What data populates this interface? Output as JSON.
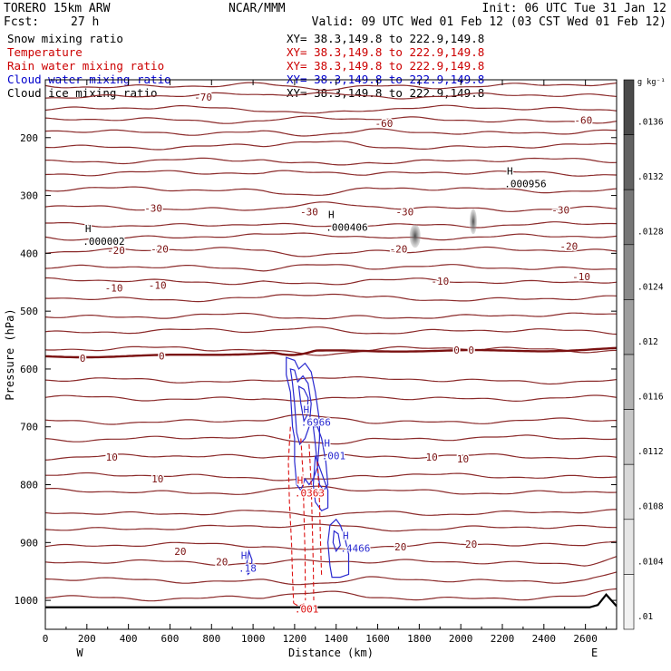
{
  "header": {
    "model": "TORERO  15km ARW",
    "center": "NCAR/MMM",
    "init": "Init: 06 UTC Tue 31 Jan 12",
    "fcst_label": "Fcst:",
    "fcst_value": "27 h",
    "valid": "Valid: 09 UTC Wed 01 Feb 12 (03 CST Wed 01 Feb 12)"
  },
  "legend": [
    {
      "name": "Snow mixing ratio",
      "color": "#000000",
      "xy": "XY=  38.3,149.8 to 222.9,149.8"
    },
    {
      "name": "Temperature",
      "color": "#cc0000",
      "xy": "XY=  38.3,149.8 to 222.9,149.8"
    },
    {
      "name": "Rain water mixing ratio",
      "color": "#cc0000",
      "xy": "XY=  38.3,149.8 to 222.9,149.8"
    },
    {
      "name": "Cloud water mixing ratio",
      "color": "#0000cc",
      "xy": "XY=  38.3,149.8 to 222.9,149.8"
    },
    {
      "name": "Cloud ice mixing ratio",
      "color": "#000000",
      "xy": "XY=  38.3,149.8 to 222.9,149.8"
    }
  ],
  "colorbar": {
    "unit": "g kg⁻¹",
    "ticks": [
      ".0136",
      ".0132",
      ".0128",
      ".0124",
      ".012",
      ".0116",
      ".0112",
      ".0108",
      ".0104",
      ".01"
    ],
    "shades": [
      "#4a4a4a",
      "#626262",
      "#767676",
      "#8a8a8a",
      "#9e9e9e",
      "#b2b2b2",
      "#c6c6c6",
      "#d8d8d8",
      "#e6e6e6",
      "#f2f2f2"
    ]
  },
  "colors": {
    "temperature": "#8b2a2a",
    "zero_isotherm": "#7a1010",
    "rain": "#dd1111",
    "cloud_water": "#2a2ad0",
    "terrain": "#000000"
  },
  "chart_data": {
    "type": "cross-section",
    "xlabel": "Distance (km)",
    "ylabel": "Pressure (hPa)",
    "xlim": [
      0,
      2750
    ],
    "ylim": [
      1050,
      100
    ],
    "xticks": [
      0,
      200,
      400,
      600,
      800,
      1000,
      1200,
      1400,
      1600,
      1800,
      2000,
      2200,
      2400,
      2600
    ],
    "yticks": [
      200,
      300,
      400,
      500,
      600,
      700,
      800,
      900,
      1000
    ],
    "x_end_labels": {
      "left": "W",
      "right": "E"
    },
    "temperature_isotherms": [
      {
        "value": -70,
        "label": "-70",
        "label_x": 760,
        "label_p": 130
      },
      {
        "value": -60,
        "label": "-60",
        "label_x": 1630,
        "label_p": 175
      },
      {
        "value": -60,
        "label": "-60",
        "label_x": 2590,
        "label_p": 170
      },
      {
        "value": -30,
        "label": "-30",
        "label_x": 520,
        "label_p": 322
      },
      {
        "value": -30,
        "label": "-30",
        "label_x": 1270,
        "label_p": 328
      },
      {
        "value": -30,
        "label": "-30",
        "label_x": 1730,
        "label_p": 328
      },
      {
        "value": -30,
        "label": "-30",
        "label_x": 2480,
        "label_p": 325
      },
      {
        "value": -20,
        "label": "-20",
        "label_x": 340,
        "label_p": 395
      },
      {
        "value": -20,
        "label": "-20",
        "label_x": 550,
        "label_p": 392
      },
      {
        "value": -20,
        "label": "-20",
        "label_x": 1700,
        "label_p": 392
      },
      {
        "value": -20,
        "label": "-20",
        "label_x": 2520,
        "label_p": 388
      },
      {
        "value": -10,
        "label": "-10",
        "label_x": 330,
        "label_p": 460
      },
      {
        "value": -10,
        "label": "-10",
        "label_x": 540,
        "label_p": 455
      },
      {
        "value": -10,
        "label": "-10",
        "label_x": 1900,
        "label_p": 448
      },
      {
        "value": -10,
        "label": "-10",
        "label_x": 2580,
        "label_p": 440
      },
      {
        "value": 0,
        "label": "0",
        "label_x": 180,
        "label_p": 581
      },
      {
        "value": 0,
        "label": "0",
        "label_x": 560,
        "label_p": 577
      },
      {
        "value": 0,
        "label": "0",
        "label_x": 1980,
        "label_p": 567
      },
      {
        "value": 0,
        "label": "0",
        "label_x": 2050,
        "label_p": 567
      },
      {
        "value": 10,
        "label": "10",
        "label_x": 320,
        "label_p": 752
      },
      {
        "value": 10,
        "label": "10",
        "label_x": 540,
        "label_p": 790
      },
      {
        "value": 10,
        "label": "10",
        "label_x": 1860,
        "label_p": 752
      },
      {
        "value": 10,
        "label": "10",
        "label_x": 2010,
        "label_p": 755
      },
      {
        "value": 20,
        "label": "20",
        "label_x": 650,
        "label_p": 915
      },
      {
        "value": 20,
        "label": "20",
        "label_x": 850,
        "label_p": 933
      },
      {
        "value": 20,
        "label": "20",
        "label_x": 1710,
        "label_p": 907
      },
      {
        "value": 20,
        "label": "20",
        "label_x": 2050,
        "label_p": 903
      }
    ],
    "extrema_labels": [
      {
        "mark": "H",
        "value": ".000002",
        "x": 180,
        "p": 370,
        "field": "snow"
      },
      {
        "mark": "H",
        "value": ".000406",
        "x": 1350,
        "p": 345,
        "field": "snow"
      },
      {
        "mark": "H",
        "value": ".000956",
        "x": 2210,
        "p": 270,
        "field": "snow"
      },
      {
        "mark": "H",
        "value": ".6966",
        "x": 1230,
        "p": 682,
        "field": "cloud_water"
      },
      {
        "mark": "H",
        "value": ".001",
        "x": 1330,
        "p": 740,
        "field": "cloud_water"
      },
      {
        "mark": "H",
        "value": ".0363",
        "x": 1200,
        "p": 805,
        "field": "rain"
      },
      {
        "mark": "H",
        "value": ".4466",
        "x": 1420,
        "p": 900,
        "field": "cloud_water"
      },
      {
        "mark": "H",
        "value": ".18",
        "x": 930,
        "p": 935,
        "field": "cloud_water"
      },
      {
        "mark": "",
        "value": ".001",
        "x": 1200,
        "p": 1005,
        "field": "rain"
      }
    ],
    "cloud_ice_shaded": [
      {
        "x": 1780,
        "p": 370,
        "max": 0.0136
      },
      {
        "x": 2060,
        "p": 345,
        "max": 0.0132
      }
    ],
    "terrain_surface_hpa": 1012,
    "grid": false
  }
}
